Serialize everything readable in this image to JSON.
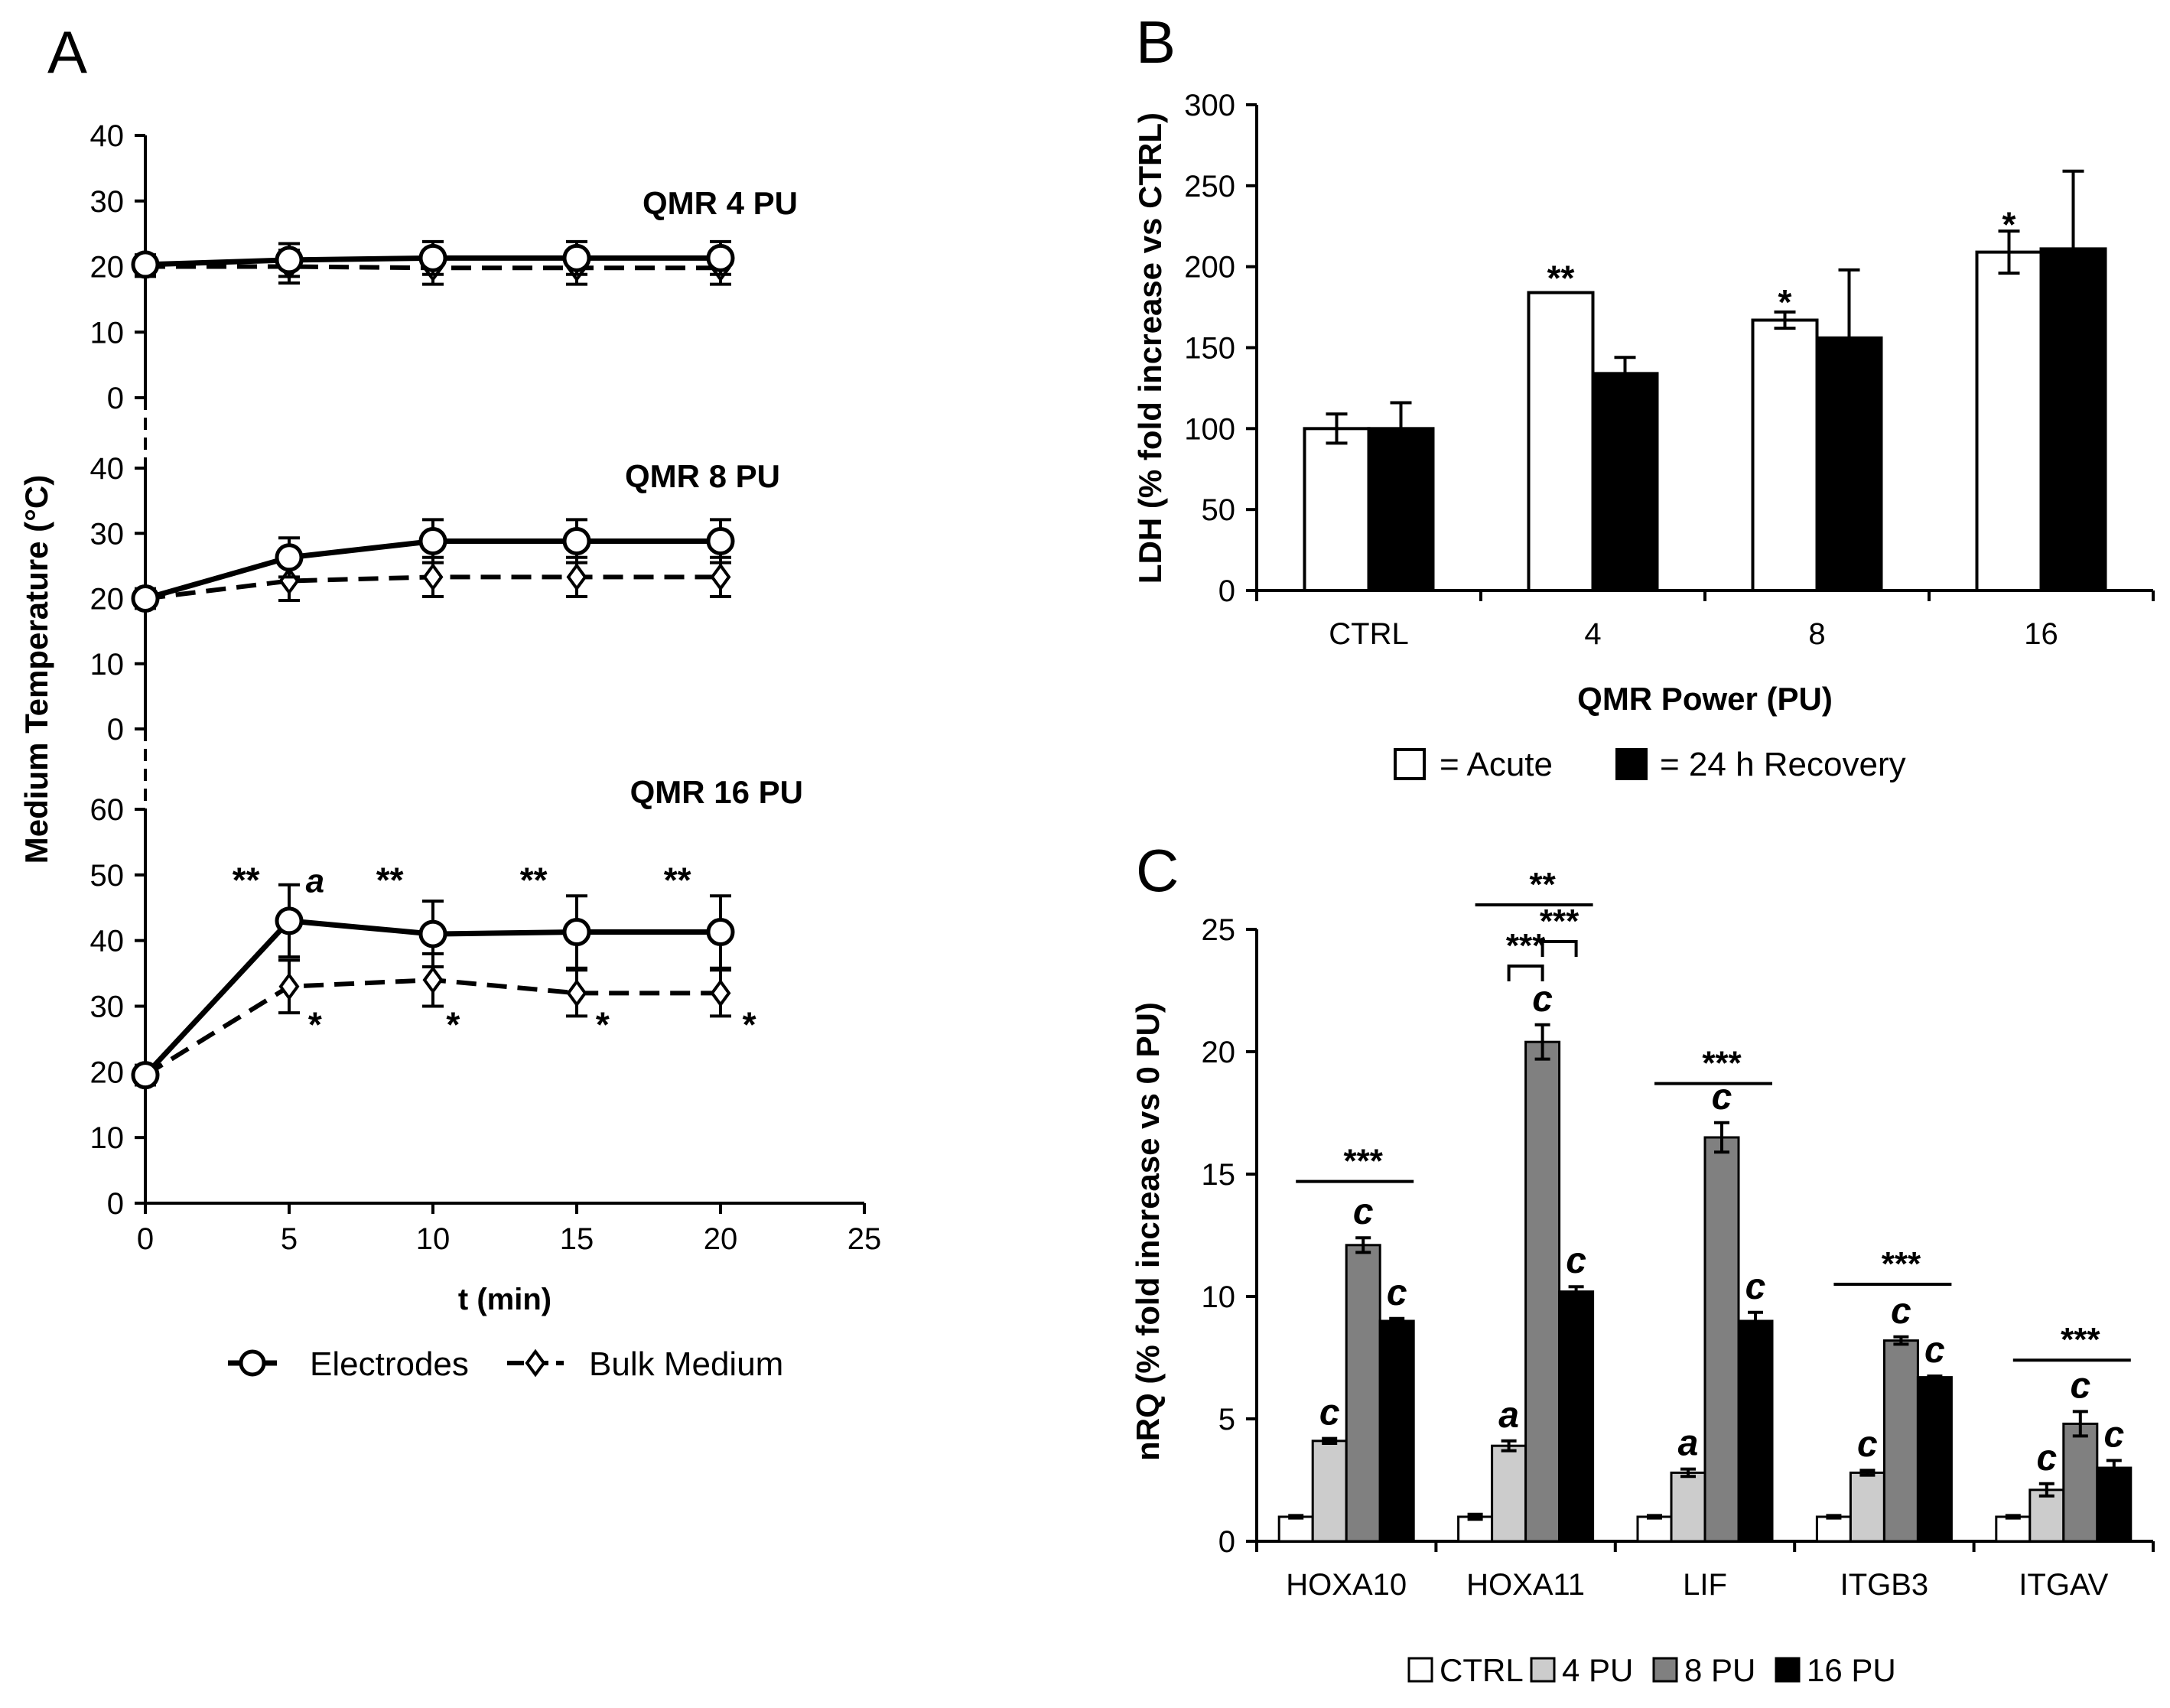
{
  "panel_labels": {
    "a": "A",
    "b": "B",
    "c": "C"
  },
  "colors": {
    "ctrl": "#ffffff",
    "pu4": "#cccccc",
    "pu8": "#808080",
    "pu16": "#000000",
    "axis": "#000000"
  },
  "chart_data": [
    {
      "id": "A",
      "type": "line",
      "ylabel": "Medium Temperature (°C)",
      "xlabel": "t (min)",
      "x_ticks": [
        0,
        5,
        10,
        15,
        20,
        25
      ],
      "xlim": [
        0,
        25
      ],
      "legend": [
        {
          "name": "Electrodes",
          "marker": "circle",
          "line": "solid"
        },
        {
          "name": "Bulk Medium",
          "marker": "diamond",
          "line": "dashed"
        }
      ],
      "subplots": [
        {
          "title": "QMR 4 PU",
          "ylim": [
            0,
            40
          ],
          "y_ticks": [
            0,
            10,
            20,
            30,
            40
          ],
          "x": [
            0,
            5,
            10,
            15,
            20
          ],
          "series": [
            {
              "name": "Electrodes",
              "values": [
                20.3,
                21.0,
                21.3,
                21.3,
                21.3
              ],
              "errors": [
                1.5,
                2.5,
                2.5,
                2.5,
                2.5
              ]
            },
            {
              "name": "Bulk Medium",
              "values": [
                20.0,
                20.0,
                19.8,
                19.8,
                19.8
              ],
              "errors": [
                1.5,
                2.5,
                2.5,
                2.5,
                2.5
              ]
            }
          ],
          "annotations": []
        },
        {
          "title": "QMR 8 PU",
          "ylim": [
            0,
            40
          ],
          "y_ticks": [
            0,
            10,
            20,
            30,
            40
          ],
          "x": [
            0,
            5,
            10,
            15,
            20
          ],
          "series": [
            {
              "name": "Electrodes",
              "values": [
                20.0,
                26.3,
                28.8,
                28.8,
                28.8
              ],
              "errors": [
                1.5,
                3.0,
                3.3,
                3.3,
                3.3
              ]
            },
            {
              "name": "Bulk Medium",
              "values": [
                20.0,
                22.7,
                23.3,
                23.3,
                23.3
              ],
              "errors": [
                1.5,
                3.0,
                3.0,
                3.0,
                3.0
              ]
            }
          ],
          "annotations": []
        },
        {
          "title": "QMR 16 PU",
          "ylim": [
            0,
            60
          ],
          "y_ticks": [
            0,
            10,
            20,
            30,
            40,
            50,
            60
          ],
          "x": [
            0,
            5,
            10,
            15,
            20
          ],
          "series": [
            {
              "name": "Electrodes",
              "values": [
                19.5,
                43.0,
                41.0,
                41.3,
                41.3
              ],
              "errors": [
                1.5,
                5.5,
                5.0,
                5.5,
                5.5
              ]
            },
            {
              "name": "Bulk Medium",
              "values": [
                19.5,
                33.0,
                34.0,
                32.0,
                32.0
              ],
              "errors": [
                1.5,
                4.0,
                4.0,
                3.5,
                3.5
              ]
            }
          ],
          "annotations": [
            {
              "text": "**",
              "x": 3.5,
              "y": 49
            },
            {
              "text": "a",
              "x": 5.9,
              "y": 49,
              "italic": true
            },
            {
              "text": "**",
              "x": 8.5,
              "y": 49
            },
            {
              "text": "**",
              "x": 13.5,
              "y": 49
            },
            {
              "text": "**",
              "x": 18.5,
              "y": 49
            },
            {
              "text": "*",
              "x": 5.9,
              "y": 27
            },
            {
              "text": "*",
              "x": 10.7,
              "y": 27
            },
            {
              "text": "*",
              "x": 15.9,
              "y": 27
            },
            {
              "text": "*",
              "x": 21.0,
              "y": 27
            }
          ]
        }
      ]
    },
    {
      "id": "B",
      "type": "bar",
      "ylabel": "LDH (% fold increase vs CTRL)",
      "xlabel": "QMR Power (PU)",
      "categories": [
        "CTRL",
        "4",
        "8",
        "16"
      ],
      "ylim": [
        0,
        300
      ],
      "y_ticks": [
        0,
        50,
        100,
        150,
        200,
        250,
        300
      ],
      "series": [
        {
          "name": "Acute",
          "legend_label": "= Acute",
          "values": [
            100,
            184,
            167,
            209
          ],
          "errors": [
            9,
            0,
            5,
            13
          ]
        },
        {
          "name": "24 h Recovery",
          "legend_label": "= 24 h Recovery",
          "values": [
            100,
            134,
            156,
            211
          ],
          "errors": [
            16,
            10,
            42,
            48
          ]
        }
      ],
      "annotations": [
        {
          "text": "**",
          "category": 1,
          "series": 0,
          "y": 195
        },
        {
          "text": "*",
          "category": 2,
          "series": 0,
          "y": 180
        },
        {
          "text": "*",
          "category": 3,
          "series": 0,
          "y": 228
        }
      ]
    },
    {
      "id": "C",
      "type": "bar",
      "ylabel": "nRQ (% fold increase vs 0 PU)",
      "categories": [
        "HOXA10",
        "HOXA11",
        "LIF",
        "ITGB3",
        "ITGAV"
      ],
      "ylim": [
        0,
        25
      ],
      "y_ticks": [
        0,
        5,
        10,
        15,
        20,
        25
      ],
      "series": [
        {
          "name": "CTRL",
          "values": [
            1.0,
            1.0,
            1.0,
            1.0,
            1.0
          ],
          "errors": [
            0.05,
            0.1,
            0.05,
            0.05,
            0.05
          ]
        },
        {
          "name": "4 PU",
          "values": [
            4.1,
            3.9,
            2.8,
            2.8,
            2.1
          ],
          "errors": [
            0.1,
            0.2,
            0.15,
            0.1,
            0.25
          ]
        },
        {
          "name": "8 PU",
          "values": [
            12.1,
            20.4,
            16.5,
            8.2,
            4.8
          ],
          "errors": [
            0.3,
            0.7,
            0.6,
            0.15,
            0.5
          ]
        },
        {
          "name": "16 PU",
          "values": [
            9.0,
            10.2,
            9.0,
            6.7,
            3.0
          ],
          "errors": [
            0.1,
            0.2,
            0.35,
            0.05,
            0.3
          ]
        }
      ],
      "letters": [
        [
          "",
          "c",
          "c",
          "c"
        ],
        [
          "",
          "a",
          "c",
          "c"
        ],
        [
          "",
          "a",
          "c",
          "c"
        ],
        [
          "",
          "c",
          "c",
          "c"
        ],
        [
          "",
          "c",
          "c",
          "c"
        ]
      ],
      "brackets": [
        {
          "category": 0,
          "from": 1,
          "to": 3,
          "text": "***",
          "y": 14.7
        },
        {
          "category": 1,
          "from": 1,
          "to": 3,
          "text": "**",
          "y": 26.0
        },
        {
          "category": 1,
          "from": 1,
          "to": 2,
          "text": "***",
          "y": 23.5,
          "drop": true
        },
        {
          "category": 1,
          "from": 2,
          "to": 3,
          "text": "***",
          "y": 24.5,
          "drop": true
        },
        {
          "category": 2,
          "from": 1,
          "to": 3,
          "text": "***",
          "y": 18.7
        },
        {
          "category": 3,
          "from": 1,
          "to": 3,
          "text": "***",
          "y": 10.5
        },
        {
          "category": 4,
          "from": 1,
          "to": 3,
          "text": "***",
          "y": 7.4
        }
      ]
    }
  ]
}
